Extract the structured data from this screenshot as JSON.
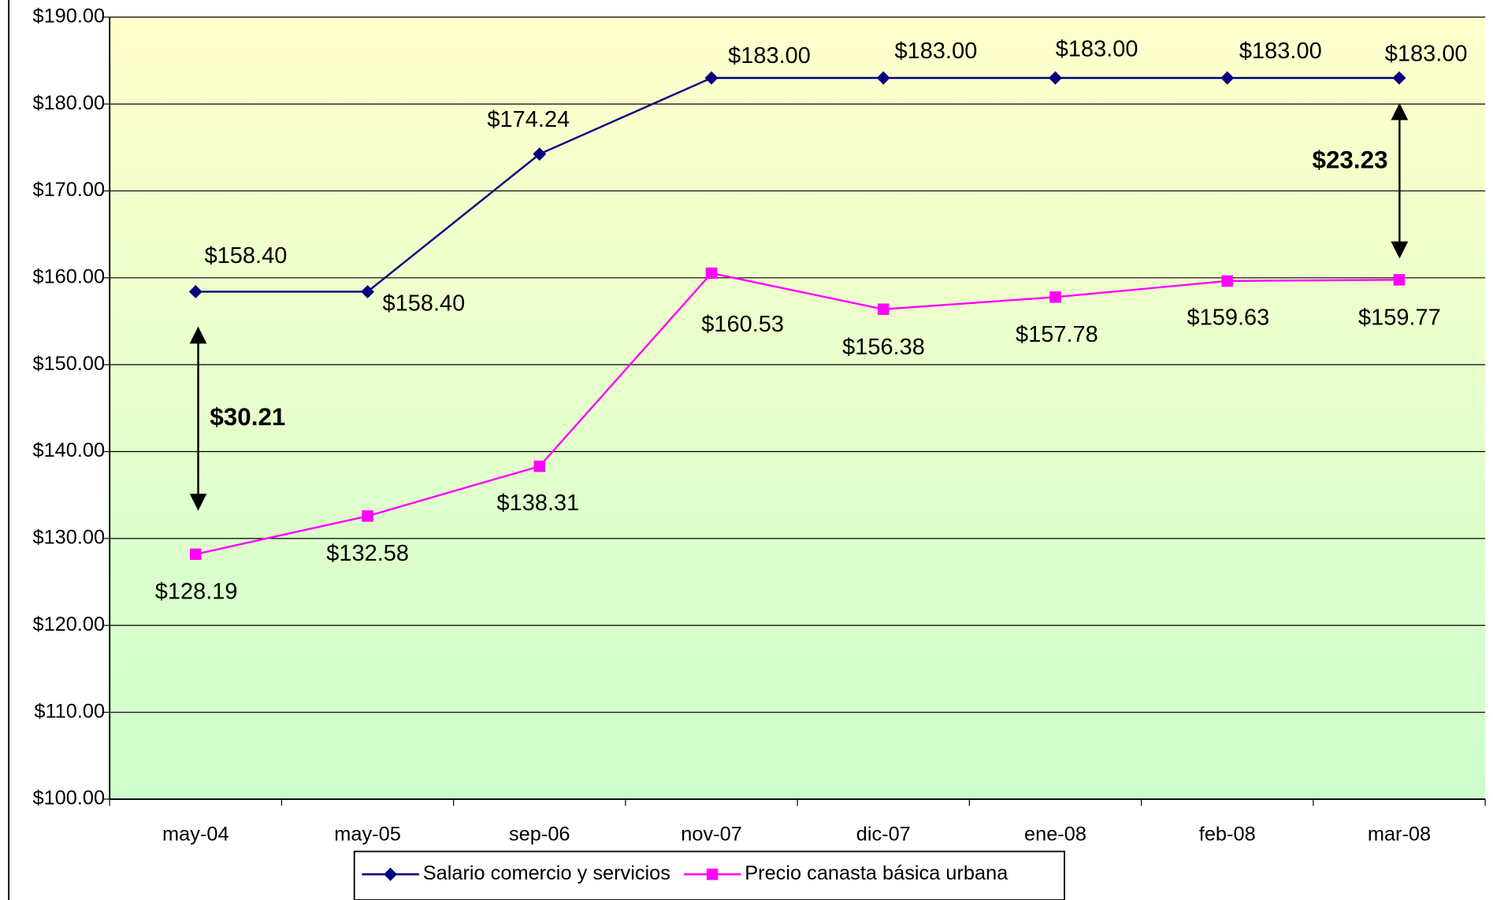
{
  "chart_data": {
    "type": "line",
    "categories": [
      "may-04",
      "may-05",
      "sep-06",
      "nov-07",
      "dic-07",
      "ene-08",
      "feb-08",
      "mar-08"
    ],
    "series": [
      {
        "name": "Salario comercio y servicios",
        "color": "#000080",
        "marker": "diamond",
        "values": [
          158.4,
          158.4,
          174.24,
          183.0,
          183.0,
          183.0,
          183.0,
          183.0
        ],
        "value_labels": [
          "$158.40",
          "$158.40",
          "$174.24",
          "$183.00",
          "$183.00",
          "$183.00",
          "$183.00",
          "$183.00"
        ]
      },
      {
        "name": "Precio canasta básica urbana",
        "color": "#ff00ff",
        "marker": "square",
        "values": [
          128.19,
          132.58,
          138.31,
          160.53,
          156.38,
          157.78,
          159.63,
          159.77
        ],
        "value_labels": [
          "$128.19",
          "$132.58",
          "$138.31",
          "$160.53",
          "$156.38",
          "$157.78",
          "$159.63",
          "$159.77"
        ]
      }
    ],
    "ylim": [
      100,
      190
    ],
    "yticks": [
      {
        "value": 100,
        "label": "$100.00"
      },
      {
        "value": 110,
        "label": "$110.00"
      },
      {
        "value": 120,
        "label": "$120.00"
      },
      {
        "value": 130,
        "label": "$130.00"
      },
      {
        "value": 140,
        "label": "$140.00"
      },
      {
        "value": 150,
        "label": "$150.00"
      },
      {
        "value": 160,
        "label": "$160.00"
      },
      {
        "value": 170,
        "label": "$170.00"
      },
      {
        "value": 180,
        "label": "$180.00"
      },
      {
        "value": 190,
        "label": "$190.00"
      }
    ],
    "grid": true,
    "legend": "bottom",
    "annotations": [
      {
        "text": "$30.21"
      },
      {
        "text": "$23.23"
      }
    ]
  }
}
